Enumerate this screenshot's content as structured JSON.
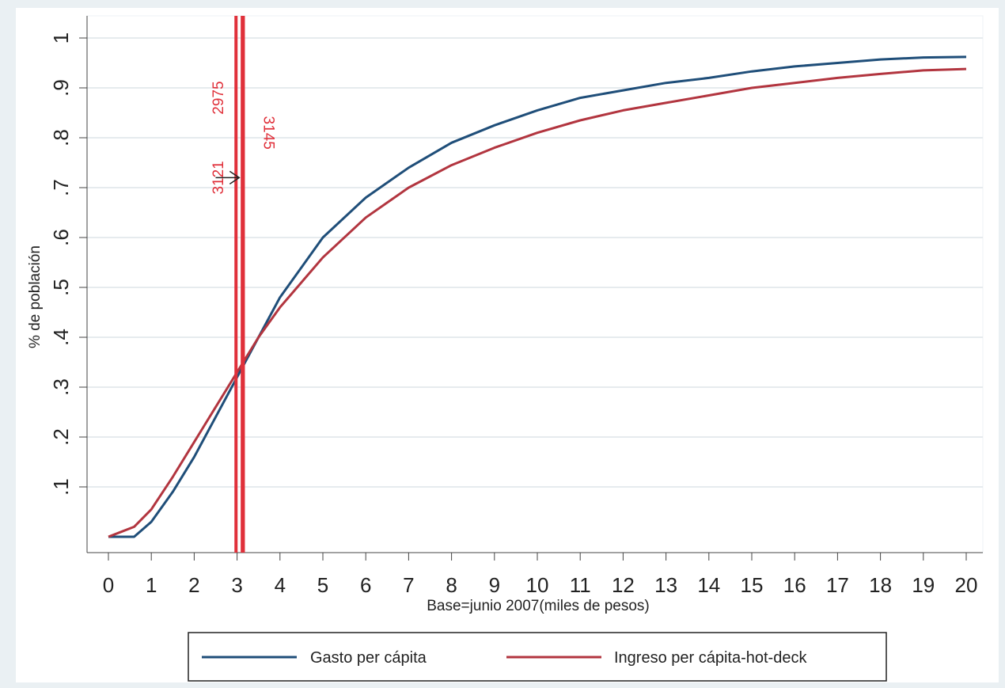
{
  "chart_data": {
    "type": "line",
    "xlabel": "Base=junio 2007(miles de pesos)",
    "ylabel": "% de población",
    "xlim": [
      0,
      20
    ],
    "ylim": [
      0,
      1
    ],
    "x_ticks": [
      "0",
      "1",
      "2",
      "3",
      "4",
      "5",
      "6",
      "7",
      "8",
      "9",
      "10",
      "11",
      "12",
      "13",
      "14",
      "15",
      "16",
      "17",
      "18",
      "19",
      "20"
    ],
    "y_ticks": [
      ".1",
      ".2",
      ".3",
      ".4",
      ".5",
      ".6",
      ".7",
      ".8",
      ".9",
      "1"
    ],
    "grid": true,
    "legend_position": "bottom",
    "series": [
      {
        "name": "Gasto per cápita",
        "color": "#1f4e79",
        "x": [
          0,
          0.3,
          0.6,
          1,
          1.5,
          2,
          2.5,
          3,
          3.5,
          4,
          5,
          6,
          7,
          8,
          9,
          10,
          11,
          12,
          13,
          14,
          15,
          16,
          17,
          18,
          19,
          20
        ],
        "y": [
          0,
          0,
          0,
          0.03,
          0.09,
          0.16,
          0.24,
          0.32,
          0.4,
          0.48,
          0.6,
          0.68,
          0.74,
          0.79,
          0.825,
          0.855,
          0.88,
          0.895,
          0.91,
          0.92,
          0.933,
          0.943,
          0.95,
          0.957,
          0.961,
          0.962
        ]
      },
      {
        "name": "Ingreso per cápita-hot-deck",
        "color": "#b2353f",
        "x": [
          0,
          0.3,
          0.6,
          1,
          1.5,
          2,
          2.5,
          3,
          3.5,
          4,
          5,
          6,
          7,
          8,
          9,
          10,
          11,
          12,
          13,
          14,
          15,
          16,
          17,
          18,
          19,
          20
        ],
        "y": [
          0,
          0.01,
          0.02,
          0.055,
          0.12,
          0.19,
          0.26,
          0.33,
          0.4,
          0.46,
          0.56,
          0.64,
          0.7,
          0.745,
          0.78,
          0.81,
          0.835,
          0.855,
          0.87,
          0.885,
          0.9,
          0.91,
          0.92,
          0.928,
          0.935,
          0.938
        ]
      }
    ],
    "vlines": [
      {
        "x": 2.975,
        "color": "#e0303a"
      },
      {
        "x": 3.121,
        "color": "#e0303a"
      },
      {
        "x": 3.145,
        "color": "#e0303a"
      }
    ],
    "annotations": [
      {
        "text": "2975",
        "x": 2.975,
        "y": 0.88
      },
      {
        "text": "3121",
        "x": 2.975,
        "y": 0.72
      },
      {
        "text": "3145",
        "x": 3.145,
        "y": 0.81
      }
    ],
    "arrow": {
      "x_from": 2.5,
      "x_to": 3.05,
      "y": 0.72
    }
  }
}
